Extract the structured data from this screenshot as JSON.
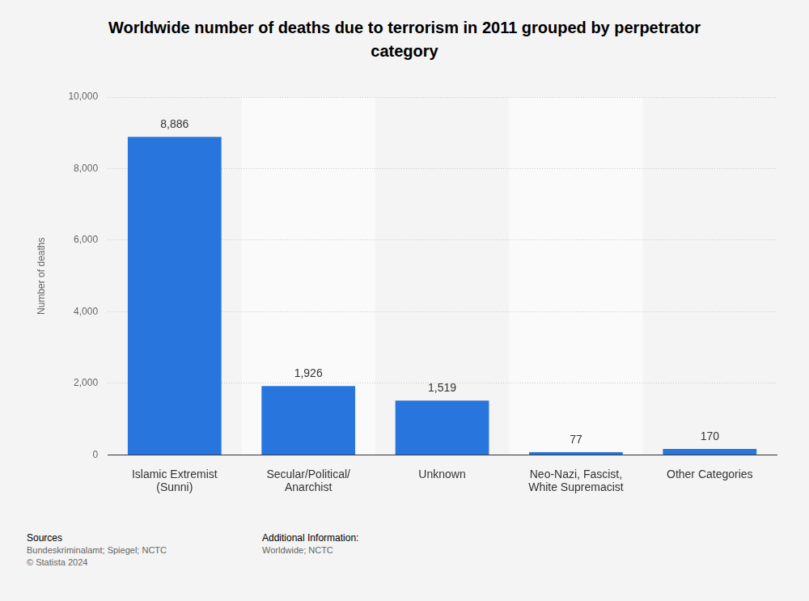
{
  "chart_data": {
    "type": "bar",
    "title": "Worldwide number of deaths due to terrorism in 2011 grouped by perpetrator category",
    "y_label": "Number of deaths",
    "categories": [
      [
        "Islamic Extremist",
        "(Sunni)"
      ],
      [
        "Secular/Political/",
        "Anarchist"
      ],
      "Unknown",
      [
        "Neo-Nazi, Fascist,",
        "White Supremacist"
      ],
      "Other Categories"
    ],
    "values": [
      8886,
      1926,
      1519,
      77,
      170
    ],
    "value_labels": [
      "8,886",
      "1,926",
      "1,519",
      "77",
      "170"
    ],
    "data_labels": true,
    "color": "#2876dd",
    "ylim": [
      0,
      10000
    ],
    "yticks": [
      0,
      {
        "value": 2000,
        "label": "2,000"
      },
      {
        "value": 4000,
        "label": "4,000"
      },
      {
        "value": 6000,
        "label": "6,000"
      },
      {
        "value": 8000,
        "label": "8,000"
      },
      {
        "value": 10000,
        "label": "10,000"
      }
    ],
    "grid": true,
    "sources_title": "Sources",
    "sources": [
      "Bundeskriminalamt; Spiegel; NCTC",
      "© Statista 2024"
    ],
    "additional_info_title": "Additional Information:",
    "additional_info": [
      "Worldwide; NCTC"
    ]
  }
}
